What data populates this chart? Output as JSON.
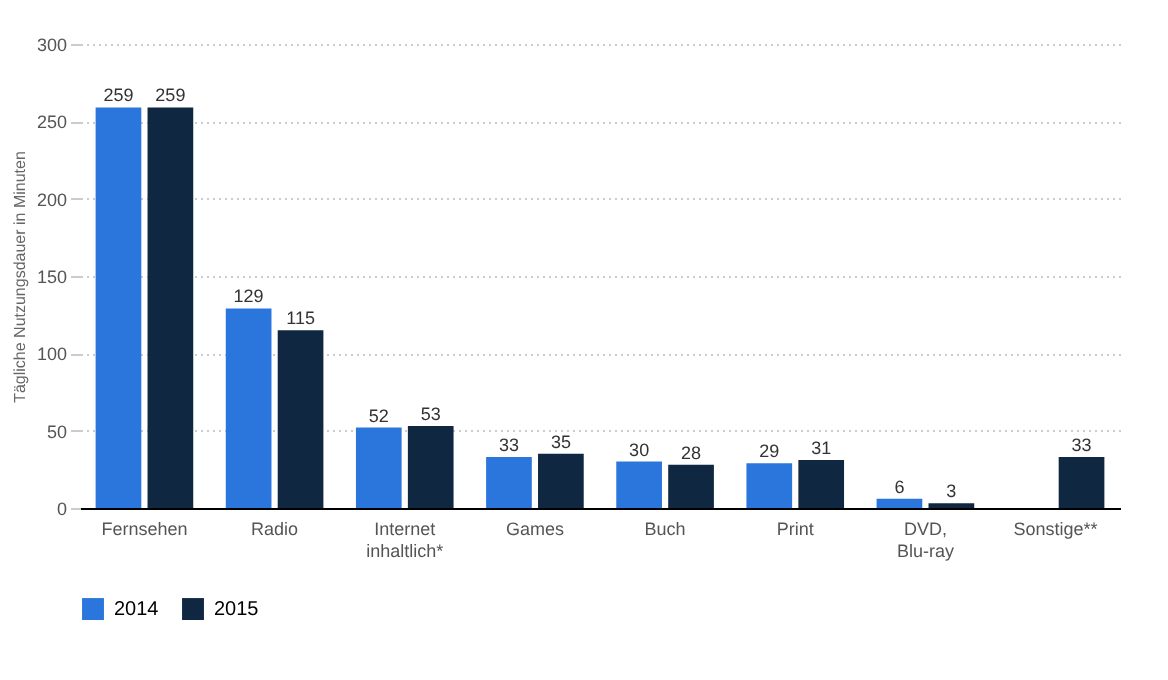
{
  "chart_data": {
    "type": "bar",
    "ylabel": "Tägliche Nutzungsdauer in Minuten",
    "categories": [
      "Fernsehen",
      "Radio",
      "Internet inhaltlich*",
      "Games",
      "Buch",
      "Print",
      "DVD, Blu-ray",
      "Sonstige**"
    ],
    "series": [
      {
        "name": "2014",
        "color": "#2a76dd",
        "values": [
          259,
          129,
          52,
          33,
          30,
          29,
          6,
          null
        ]
      },
      {
        "name": "2015",
        "color": "#0f2740",
        "values": [
          259,
          115,
          53,
          35,
          28,
          31,
          3,
          33
        ]
      }
    ],
    "ylim": [
      0,
      300
    ],
    "yticks": [
      0,
      50,
      100,
      150,
      200,
      250,
      300
    ],
    "grid": "y",
    "legend": "bottom",
    "data_labels": true
  }
}
